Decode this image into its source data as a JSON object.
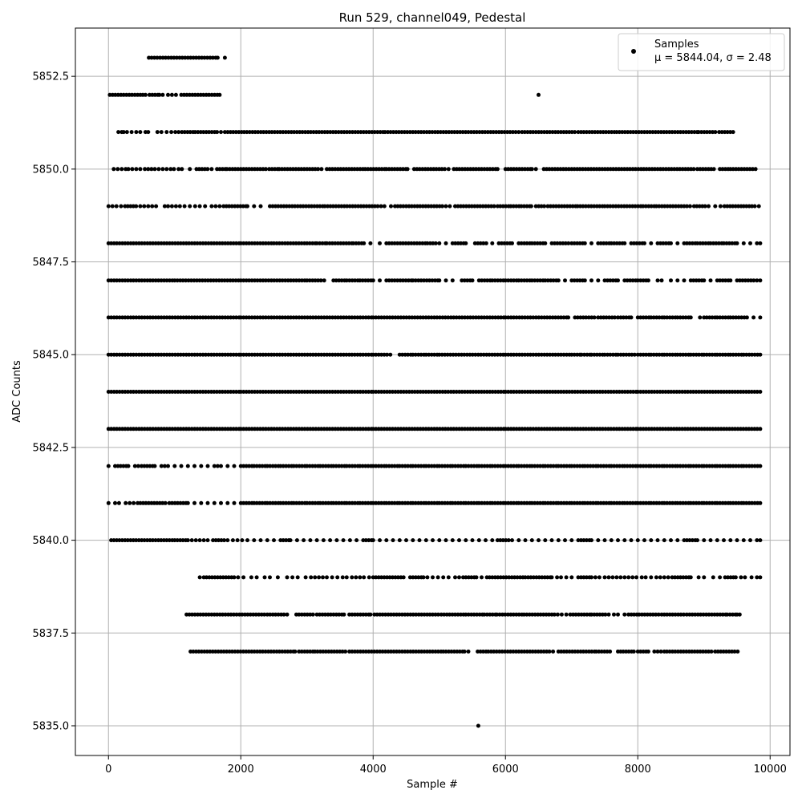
{
  "chart_data": {
    "type": "scatter",
    "title": "Run 529, channel049, Pedestal",
    "xlabel": "Sample #",
    "ylabel": "ADC Counts",
    "xlim": [
      -500,
      10300
    ],
    "ylim": [
      5834.2,
      5853.8
    ],
    "xticks": [
      0,
      2000,
      4000,
      6000,
      8000,
      10000
    ],
    "xtick_labels": [
      "0",
      "2000",
      "4000",
      "6000",
      "8000",
      "10000"
    ],
    "yticks": [
      5835.0,
      5837.5,
      5840.0,
      5842.5,
      5845.0,
      5847.5,
      5850.0,
      5852.5
    ],
    "ytick_labels": [
      "5835.0",
      "5837.5",
      "5840.0",
      "5842.5",
      "5845.0",
      "5847.5",
      "5850.0",
      "5852.5"
    ],
    "grid": true,
    "legend_position": "top-right",
    "n_samples": 9850,
    "series": [
      {
        "name": "Samples",
        "stats_label": "μ = 5844.04, σ = 2.48",
        "mean": 5844.04,
        "std": 2.48,
        "color": "#000000",
        "levels": [
          {
            "y": 5853,
            "x": [
              610,
              780,
              1650,
              1760
            ]
          },
          {
            "y": 5852,
            "x": [
              20,
              520,
              560,
              620,
              770,
              820,
              900,
              960,
              1020,
              1100,
              1680,
              6500
            ]
          },
          {
            "y": 5851,
            "x": [
              150,
              200,
              230,
              280,
              350,
              420,
              480,
              560,
              600,
              740,
              800,
              880,
              950,
              1010,
              1060,
              1110,
              1310,
              1640,
              1700,
              1760,
              2050,
              4180,
              6200,
              6250,
              7100,
              7680,
              8920,
              9230,
              9440
            ]
          },
          {
            "y": 5850,
            "x": [
              80,
              140,
              200,
              260,
              300,
              360,
              420,
              480,
              550,
              600,
              650,
              700,
              760,
              820,
              880,
              940,
              990,
              1060,
              1110,
              1230,
              1330,
              1560,
              1640,
              1790,
              2430,
              2580,
              3220,
              3300,
              3880,
              4200,
              4520,
              4620,
              5140,
              5220,
              5880,
              6000,
              6400,
              6460,
              6580,
              8090,
              8720,
              8900,
              9150,
              9240,
              9400,
              9780
            ]
          },
          {
            "y": 5849,
            "x": [
              0,
              60,
              120,
              190,
              250,
              480,
              540,
              600,
              660,
              720,
              850,
              900,
              960,
              1020,
              1080,
              1150,
              1230,
              1310,
              1380,
              1460,
              1560,
              1620,
              1680,
              1740,
              1910,
              2100,
              2200,
              2300,
              2440,
              3270,
              4120,
              4170,
              4270,
              4330,
              4500,
              4710,
              5100,
              5160,
              5240,
              5880,
              6080,
              6240,
              6390,
              6460,
              6640,
              7090,
              7130,
              7500,
              8080,
              8280,
              8790,
              8850,
              9070,
              9170,
              9250,
              9310,
              9600,
              9830
            ]
          },
          {
            "y": 5848,
            "x": [
              0,
              2000,
              2500,
              3000,
              3150,
              3300,
              3700,
              3860,
              3960,
              4100,
              4200,
              4820,
              5000,
              5100,
              5200,
              5400,
              5540,
              5710,
              5800,
              5900,
              6100,
              6200,
              6400,
              6600,
              6700,
              7000,
              7200,
              7300,
              7400,
              7600,
              7800,
              7900,
              8100,
              8200,
              8300,
              8500,
              8600,
              8700,
              8900,
              9100,
              9300,
              9500,
              9600,
              9700,
              9800,
              9850
            ]
          },
          {
            "y": 5847,
            "x": [
              0,
              1000,
              2000,
              3000,
              3260,
              3400,
              3600,
              3800,
              4000,
              4100,
              4200,
              4600,
              5000,
              5100,
              5200,
              5340,
              5500,
              5600,
              5800,
              6000,
              6200,
              6400,
              6600,
              6800,
              6900,
              7000,
              7200,
              7300,
              7400,
              7500,
              7700,
              7800,
              8000,
              8160,
              8300,
              8360,
              8500,
              8600,
              8700,
              8800,
              9000,
              9100,
              9200,
              9400,
              9500,
              9800,
              9850
            ]
          },
          {
            "y": 5846,
            "x": [
              0,
              2000,
              4000,
              6000,
              6950,
              7050,
              7400,
              7700,
              7900,
              8000,
              8200,
              8400,
              8600,
              8800,
              8940,
              9000,
              9200,
              9400,
              9650,
              9750,
              9850
            ]
          },
          {
            "y": 5845,
            "x": [
              0,
              2000,
              4000,
              4260,
              4400,
              4600,
              4800,
              5000,
              6000,
              7000,
              7150,
              7300,
              7500,
              7700,
              8000,
              8200,
              8400,
              8600,
              8800,
              9000,
              9200,
              9400,
              9600,
              9850
            ]
          },
          {
            "y": 5844,
            "x": [
              0,
              2000,
              4000,
              6000,
              8000,
              9850
            ]
          },
          {
            "y": 5843,
            "x": [
              0,
              2000,
              4000,
              6000,
              8000,
              9850
            ]
          },
          {
            "y": 5842,
            "x": [
              0,
              100,
              300,
              400,
              450,
              500,
              700,
              800,
              850,
              900,
              1000,
              1100,
              1200,
              1300,
              1400,
              1500,
              1600,
              1650,
              1700,
              1800,
              1900,
              2000,
              2200,
              2400,
              2600,
              2800,
              3000,
              3200,
              3400,
              3600,
              3800,
              4000,
              4200,
              4400,
              4600,
              4800,
              5000,
              5200,
              5400,
              5600,
              5800,
              6000,
              6200,
              6400,
              6600,
              6800,
              7000,
              7200,
              7400,
              7600,
              7800,
              8000,
              8200,
              8400,
              8600,
              8800,
              9000,
              9200,
              9400,
              9600,
              9850
            ]
          },
          {
            "y": 5841,
            "x": [
              0,
              100,
              160,
              260,
              320,
              380,
              440,
              920,
              1200,
              1300,
              1400,
              1500,
              1600,
              1700,
              1800,
              1900,
              2000,
              2200,
              2400,
              2600,
              2800,
              3000,
              3200,
              3400,
              3600,
              3800,
              4000,
              4200,
              4400,
              4600,
              4800,
              5000,
              5200,
              5400,
              5600,
              5800,
              6000,
              6200,
              6400,
              6600,
              6800,
              7000,
              7200,
              7400,
              7600,
              7800,
              8000,
              8200,
              8400,
              8600,
              8800,
              9000,
              9200,
              9400,
              9600,
              9850
            ]
          },
          {
            "y": 5840,
            "x": [
              40,
              1000,
              1200,
              1260,
              1320,
              1380,
              1440,
              1500,
              1580,
              1800,
              1880,
              1950,
              2020,
              2100,
              2200,
              2300,
              2400,
              2500,
              2600,
              2750,
              2850,
              2950,
              3050,
              3150,
              3250,
              3350,
              3450,
              3550,
              3650,
              3750,
              3850,
              4000,
              4100,
              4200,
              4300,
              4400,
              4500,
              4600,
              4700,
              4800,
              4900,
              5000,
              5100,
              5200,
              5300,
              5400,
              5500,
              5600,
              5700,
              5800,
              5880,
              6100,
              6200,
              6300,
              6400,
              6500,
              6600,
              6700,
              6800,
              6900,
              7000,
              7100,
              7300,
              7400,
              7500,
              7600,
              7700,
              7800,
              7900,
              8000,
              8100,
              8200,
              8300,
              8400,
              8500,
              8600,
              8700,
              8900,
              9000,
              9100,
              9200,
              9300,
              9400,
              9500,
              9600,
              9700,
              9800,
              9850
            ]
          },
          {
            "y": 5839,
            "x": [
              1380,
              1440,
              1900,
              1960,
              2040,
              2160,
              2240,
              2360,
              2440,
              2560,
              2700,
              2780,
              2860,
              2980,
              3060,
              3120,
              3180,
              3240,
              3300,
              3380,
              3460,
              3540,
              3600,
              3680,
              3740,
              3800,
              3860,
              3940,
              4000,
              4460,
              4560,
              4760,
              4820,
              4900,
              4980,
              5060,
              5140,
              5240,
              5300,
              5360,
              5560,
              5640,
              5720,
              5760,
              6300,
              6700,
              6780,
              6840,
              6920,
              7000,
              7100,
              7300,
              7360,
              7420,
              7500,
              7560,
              7620,
              7680,
              7740,
              7800,
              7860,
              7920,
              7980,
              8060,
              8120,
              8200,
              8280,
              8340,
              8400,
              8460,
              8520,
              8800,
              8920,
              9000,
              9140,
              9240,
              9320,
              9480,
              9560,
              9620,
              9720,
              9800,
              9850
            ]
          },
          {
            "y": 5838,
            "x": [
              1180,
              1980,
              2020,
              2400,
              2700,
              2840,
              2880,
              3150,
              3560,
              3640,
              3960,
              4020,
              4060,
              5030,
              5400,
              5680,
              5870,
              6280,
              6740,
              6790,
              6850,
              6920,
              6980,
              7300,
              7560,
              7640,
              7700,
              7800,
              7860,
              8020,
              8360,
              8400,
              8740,
              9350,
              9500,
              9540
            ]
          },
          {
            "y": 5837,
            "x": [
              1240,
              2820,
              2880,
              3120,
              3160,
              3640,
              5060,
              5100,
              5380,
              5440,
              5580,
              5740,
              6720,
              6800,
              7370,
              7580,
              7700,
              7740,
              7780,
              7940,
              8000,
              8160,
              8250,
              8300,
              8350,
              8400,
              8440,
              9170,
              9510
            ]
          },
          {
            "y": 5835,
            "x": [
              5590
            ]
          }
        ]
      }
    ]
  }
}
